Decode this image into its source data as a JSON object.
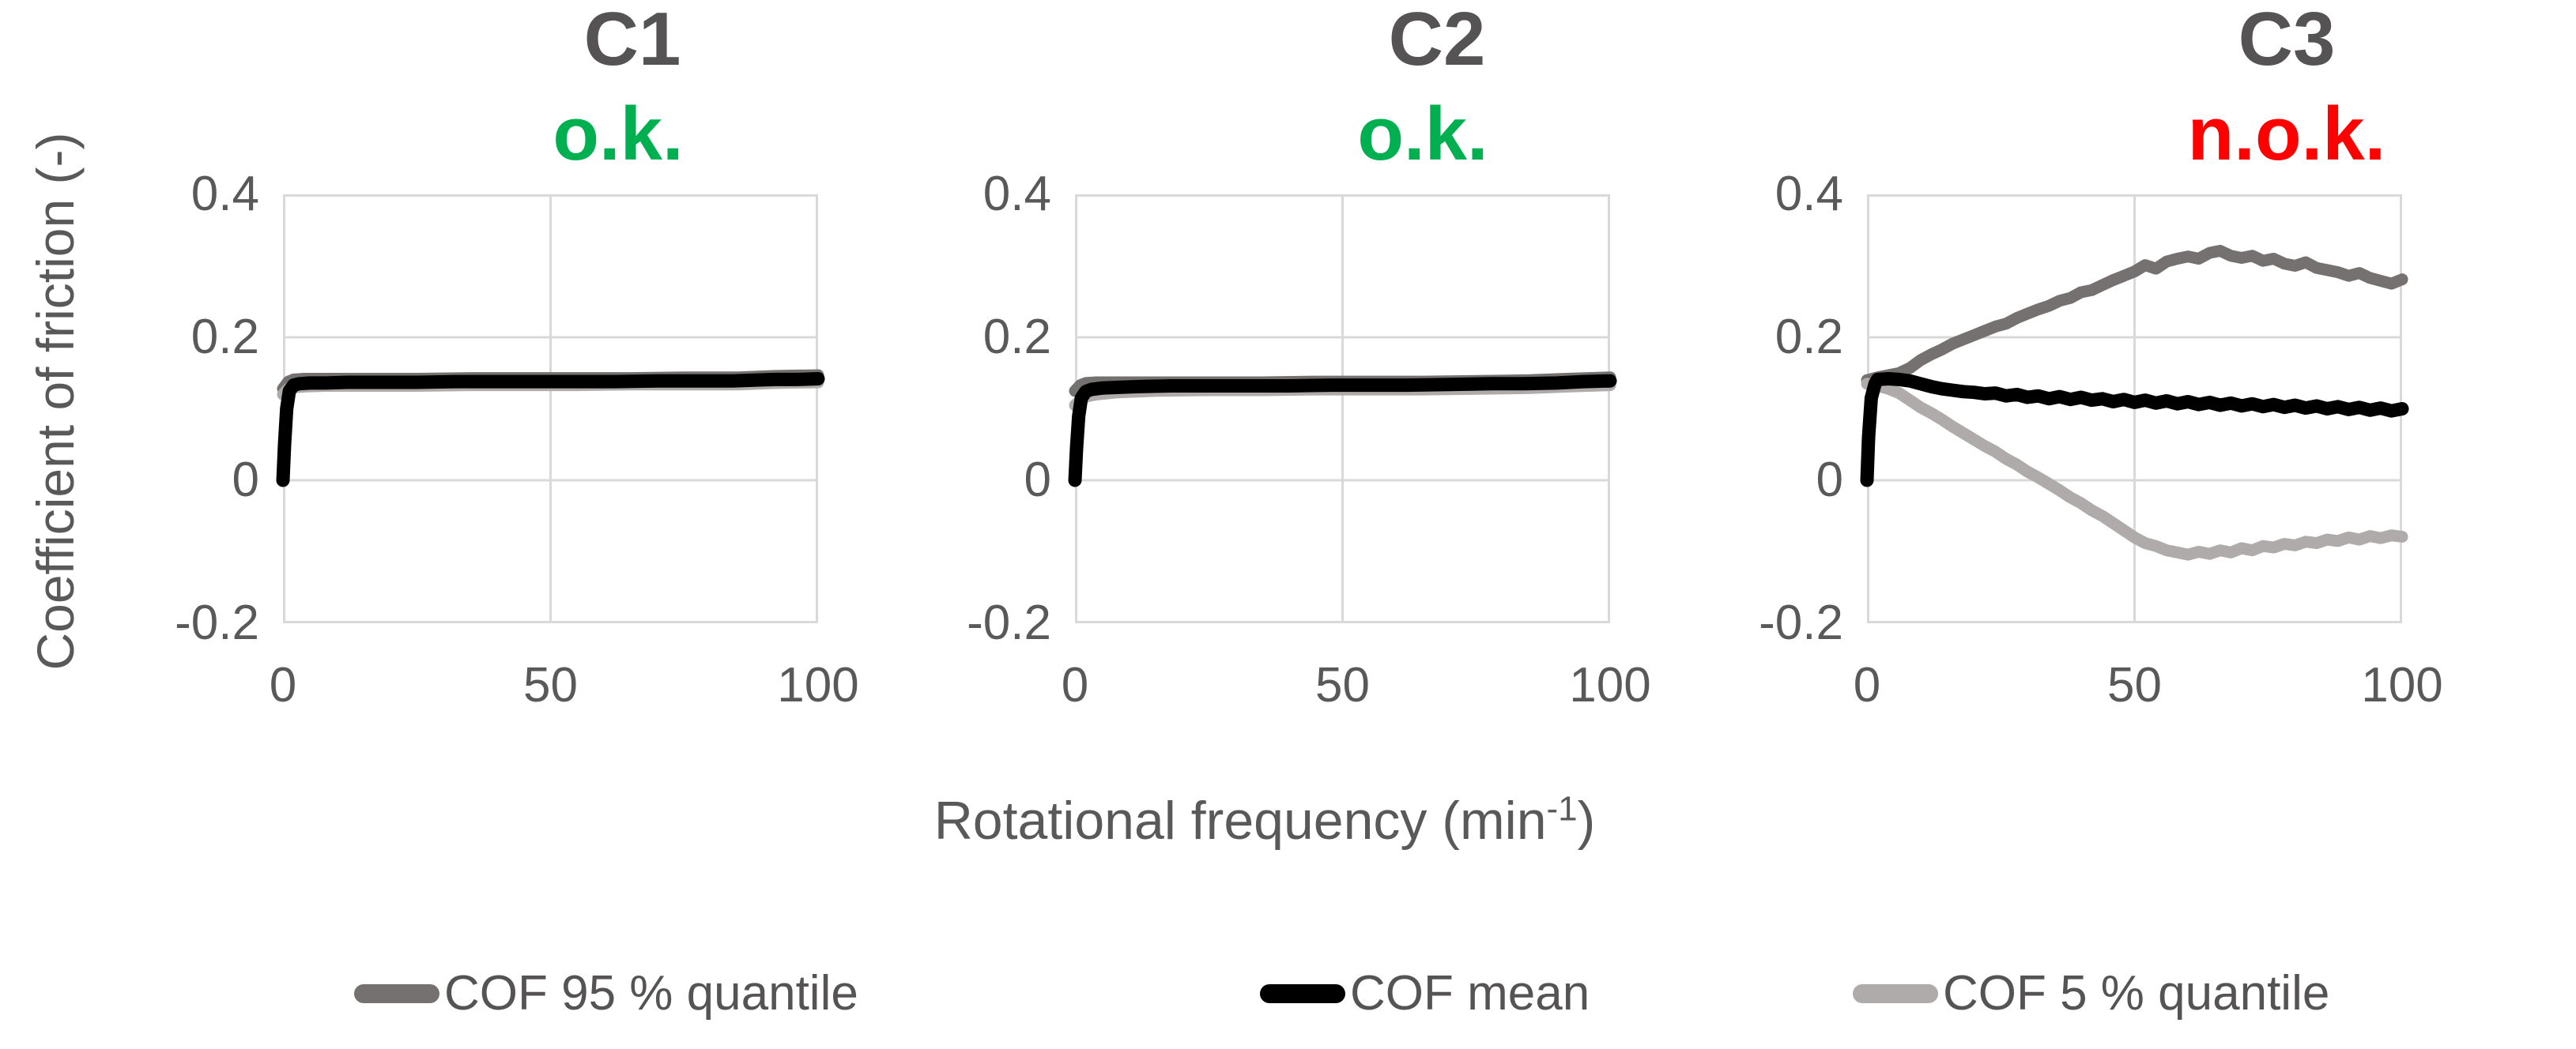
{
  "figure": {
    "y_axis_title": "Coefficient of friction (-)",
    "x_axis_title": {
      "pre": "Rotational frequency (min",
      "sup": "-1",
      "post": ")"
    },
    "colors": {
      "title_gray": "#555353",
      "tick_gray": "#595959",
      "gridline": "#D9D9D9",
      "ok_green": "#00B050",
      "nok_red": "#FF0000",
      "cof_mean": "#000000",
      "cof_q95": "#767171",
      "cof_q5": "#AFABAB"
    },
    "legend": [
      {
        "label": "COF 95 % quantile",
        "color": "#767171"
      },
      {
        "label": "COF mean",
        "color": "#000000"
      },
      {
        "label": "COF 5 % quantile",
        "color": "#AFABAB"
      }
    ],
    "axes": {
      "xlim": [
        0,
        100
      ],
      "ylim": [
        -0.2,
        0.4
      ],
      "yticks": [
        {
          "label": "0.4",
          "v": 0.4
        },
        {
          "label": "0.2",
          "v": 0.2
        },
        {
          "label": "0",
          "v": 0
        },
        {
          "label": "-0.2",
          "v": -0.2
        }
      ],
      "xticks": [
        {
          "label": "0",
          "v": 0
        },
        {
          "label": "50",
          "v": 50
        },
        {
          "label": "100",
          "v": 100
        }
      ],
      "grid": true
    }
  },
  "chart_data": [
    {
      "type": "line",
      "title": "C1",
      "subtitle": "o.k.",
      "subtitle_color": "#00B050",
      "series": [
        {
          "name": "COF 95 % quantile",
          "color": "#767171",
          "width": 15,
          "x": [
            0,
            1,
            2,
            4,
            8,
            15,
            25,
            35,
            45,
            55,
            65,
            75,
            85,
            92,
            100
          ],
          "y": [
            0.128,
            0.138,
            0.141,
            0.142,
            0.142,
            0.142,
            0.142,
            0.143,
            0.143,
            0.143,
            0.143,
            0.144,
            0.144,
            0.146,
            0.147
          ]
        },
        {
          "name": "COF 5 % quantile",
          "color": "#AFABAB",
          "width": 15,
          "x": [
            0,
            1,
            2,
            4,
            8,
            15,
            25,
            35,
            45,
            55,
            65,
            75,
            85,
            92,
            100
          ],
          "y": [
            0.12,
            0.128,
            0.13,
            0.131,
            0.132,
            0.132,
            0.132,
            0.133,
            0.133,
            0.133,
            0.134,
            0.134,
            0.134,
            0.136,
            0.137
          ]
        },
        {
          "name": "COF mean",
          "color": "#000000",
          "width": 17,
          "x": [
            0,
            0.3,
            0.7,
            1.2,
            2,
            3,
            5,
            8,
            12,
            18,
            25,
            32,
            40,
            48,
            55,
            62,
            70,
            78,
            84,
            88,
            92,
            96,
            100
          ],
          "y": [
            0,
            0.05,
            0.1,
            0.125,
            0.133,
            0.135,
            0.136,
            0.136,
            0.137,
            0.137,
            0.137,
            0.138,
            0.138,
            0.138,
            0.138,
            0.138,
            0.139,
            0.139,
            0.139,
            0.14,
            0.141,
            0.141,
            0.142
          ]
        }
      ]
    },
    {
      "type": "line",
      "title": "C2",
      "subtitle": "o.k.",
      "subtitle_color": "#00B050",
      "series": [
        {
          "name": "COF 95 % quantile",
          "color": "#767171",
          "width": 15,
          "x": [
            0,
            1,
            2,
            4,
            8,
            15,
            25,
            35,
            45,
            55,
            65,
            75,
            85,
            92,
            100
          ],
          "y": [
            0.125,
            0.133,
            0.136,
            0.137,
            0.137,
            0.137,
            0.137,
            0.137,
            0.138,
            0.138,
            0.138,
            0.139,
            0.14,
            0.142,
            0.144
          ]
        },
        {
          "name": "COF 5 % quantile",
          "color": "#AFABAB",
          "width": 15,
          "x": [
            0,
            1,
            2,
            4,
            8,
            15,
            25,
            35,
            45,
            55,
            65,
            75,
            85,
            92,
            100
          ],
          "y": [
            0.105,
            0.112,
            0.117,
            0.12,
            0.123,
            0.125,
            0.126,
            0.126,
            0.127,
            0.127,
            0.127,
            0.128,
            0.129,
            0.131,
            0.133
          ]
        },
        {
          "name": "COF mean",
          "color": "#000000",
          "width": 17,
          "x": [
            0,
            0.3,
            0.7,
            1.2,
            2,
            3,
            5,
            8,
            12,
            18,
            25,
            32,
            40,
            48,
            55,
            62,
            70,
            78,
            84,
            90,
            95,
            100
          ],
          "y": [
            0,
            0.045,
            0.09,
            0.115,
            0.124,
            0.127,
            0.129,
            0.13,
            0.131,
            0.132,
            0.132,
            0.132,
            0.132,
            0.133,
            0.133,
            0.133,
            0.134,
            0.135,
            0.135,
            0.136,
            0.138,
            0.139
          ]
        }
      ]
    },
    {
      "type": "line",
      "title": "C3",
      "subtitle": "n.o.k.",
      "subtitle_color": "#FF0000",
      "series": [
        {
          "name": "COF 95 % quantile",
          "color": "#767171",
          "width": 15,
          "x": [
            0,
            2,
            4,
            6,
            8,
            10,
            12,
            14,
            16,
            18,
            20,
            22,
            24,
            26,
            28,
            30,
            32,
            34,
            36,
            38,
            40,
            42,
            44,
            46,
            48,
            50,
            52,
            54,
            56,
            58,
            60,
            62,
            64,
            66,
            68,
            70,
            72,
            74,
            76,
            78,
            80,
            82,
            84,
            86,
            88,
            90,
            92,
            94,
            96,
            98,
            100
          ],
          "y": [
            0.14,
            0.144,
            0.147,
            0.15,
            0.157,
            0.168,
            0.176,
            0.183,
            0.191,
            0.197,
            0.203,
            0.209,
            0.215,
            0.219,
            0.227,
            0.233,
            0.239,
            0.244,
            0.251,
            0.255,
            0.263,
            0.266,
            0.273,
            0.28,
            0.286,
            0.292,
            0.301,
            0.296,
            0.306,
            0.31,
            0.313,
            0.31,
            0.318,
            0.321,
            0.314,
            0.311,
            0.314,
            0.307,
            0.31,
            0.303,
            0.3,
            0.305,
            0.297,
            0.294,
            0.291,
            0.286,
            0.29,
            0.283,
            0.279,
            0.275,
            0.281
          ]
        },
        {
          "name": "COF 5 % quantile",
          "color": "#AFABAB",
          "width": 15,
          "x": [
            0,
            2,
            4,
            6,
            8,
            10,
            12,
            14,
            16,
            18,
            20,
            22,
            24,
            26,
            28,
            30,
            32,
            34,
            36,
            38,
            40,
            42,
            44,
            46,
            48,
            50,
            52,
            54,
            56,
            58,
            60,
            62,
            64,
            66,
            68,
            70,
            72,
            74,
            76,
            78,
            80,
            82,
            84,
            86,
            88,
            90,
            92,
            94,
            96,
            98,
            100
          ],
          "y": [
            0.135,
            0.132,
            0.128,
            0.122,
            0.112,
            0.102,
            0.094,
            0.085,
            0.075,
            0.066,
            0.057,
            0.048,
            0.04,
            0.03,
            0.022,
            0.012,
            0.004,
            -0.005,
            -0.014,
            -0.024,
            -0.032,
            -0.042,
            -0.05,
            -0.06,
            -0.07,
            -0.08,
            -0.088,
            -0.092,
            -0.098,
            -0.101,
            -0.104,
            -0.1,
            -0.103,
            -0.098,
            -0.101,
            -0.095,
            -0.098,
            -0.092,
            -0.094,
            -0.089,
            -0.091,
            -0.086,
            -0.088,
            -0.083,
            -0.085,
            -0.08,
            -0.083,
            -0.078,
            -0.081,
            -0.077,
            -0.079
          ]
        },
        {
          "name": "COF mean",
          "color": "#000000",
          "width": 17,
          "x": [
            0,
            0.3,
            0.8,
            1.5,
            2,
            4,
            6,
            8,
            10,
            12,
            14,
            16,
            18,
            20,
            22,
            24,
            26,
            28,
            30,
            32,
            34,
            36,
            38,
            40,
            42,
            44,
            46,
            48,
            50,
            52,
            54,
            56,
            58,
            60,
            62,
            64,
            66,
            68,
            70,
            72,
            74,
            76,
            78,
            80,
            82,
            84,
            86,
            88,
            90,
            92,
            94,
            96,
            98,
            100
          ],
          "y": [
            0,
            0.06,
            0.115,
            0.135,
            0.141,
            0.142,
            0.141,
            0.139,
            0.135,
            0.131,
            0.128,
            0.126,
            0.124,
            0.123,
            0.121,
            0.122,
            0.118,
            0.12,
            0.116,
            0.118,
            0.114,
            0.117,
            0.113,
            0.116,
            0.112,
            0.114,
            0.11,
            0.113,
            0.109,
            0.112,
            0.108,
            0.111,
            0.107,
            0.11,
            0.106,
            0.109,
            0.105,
            0.108,
            0.104,
            0.107,
            0.103,
            0.106,
            0.102,
            0.105,
            0.101,
            0.104,
            0.1,
            0.103,
            0.099,
            0.102,
            0.098,
            0.101,
            0.097,
            0.1
          ]
        }
      ]
    }
  ]
}
